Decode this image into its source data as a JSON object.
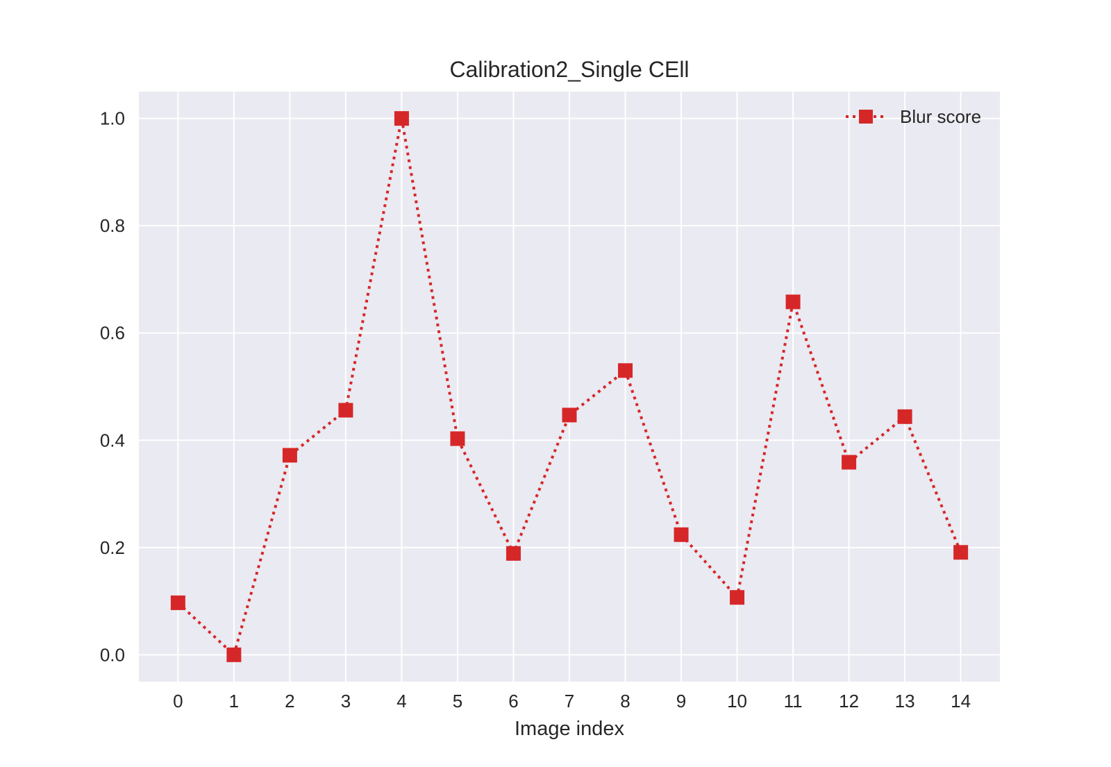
{
  "chart_data": {
    "type": "line",
    "title": "Calibration2_Single CEll",
    "xlabel": "Image index",
    "ylabel": "",
    "x": [
      0,
      1,
      2,
      3,
      4,
      5,
      6,
      7,
      8,
      9,
      10,
      11,
      12,
      13,
      14
    ],
    "xticks": [
      "0",
      "1",
      "2",
      "3",
      "4",
      "5",
      "6",
      "7",
      "8",
      "9",
      "10",
      "11",
      "12",
      "13",
      "14"
    ],
    "yticks": [
      "0.0",
      "0.2",
      "0.4",
      "0.6",
      "0.8",
      "1.0"
    ],
    "xlim": [
      -0.7,
      14.7
    ],
    "ylim": [
      -0.05,
      1.05
    ],
    "grid": true,
    "legend_position": "top-right",
    "series": [
      {
        "name": "Blur score",
        "color": "#d62728",
        "line_style": "dotted",
        "marker": "square",
        "values": [
          0.097,
          0.0,
          0.372,
          0.456,
          1.0,
          0.403,
          0.189,
          0.447,
          0.53,
          0.224,
          0.107,
          0.658,
          0.359,
          0.444,
          0.191
        ]
      }
    ],
    "colors": {
      "plot_background": "#eaeaf2",
      "grid": "#ffffff",
      "text": "#262626"
    }
  }
}
